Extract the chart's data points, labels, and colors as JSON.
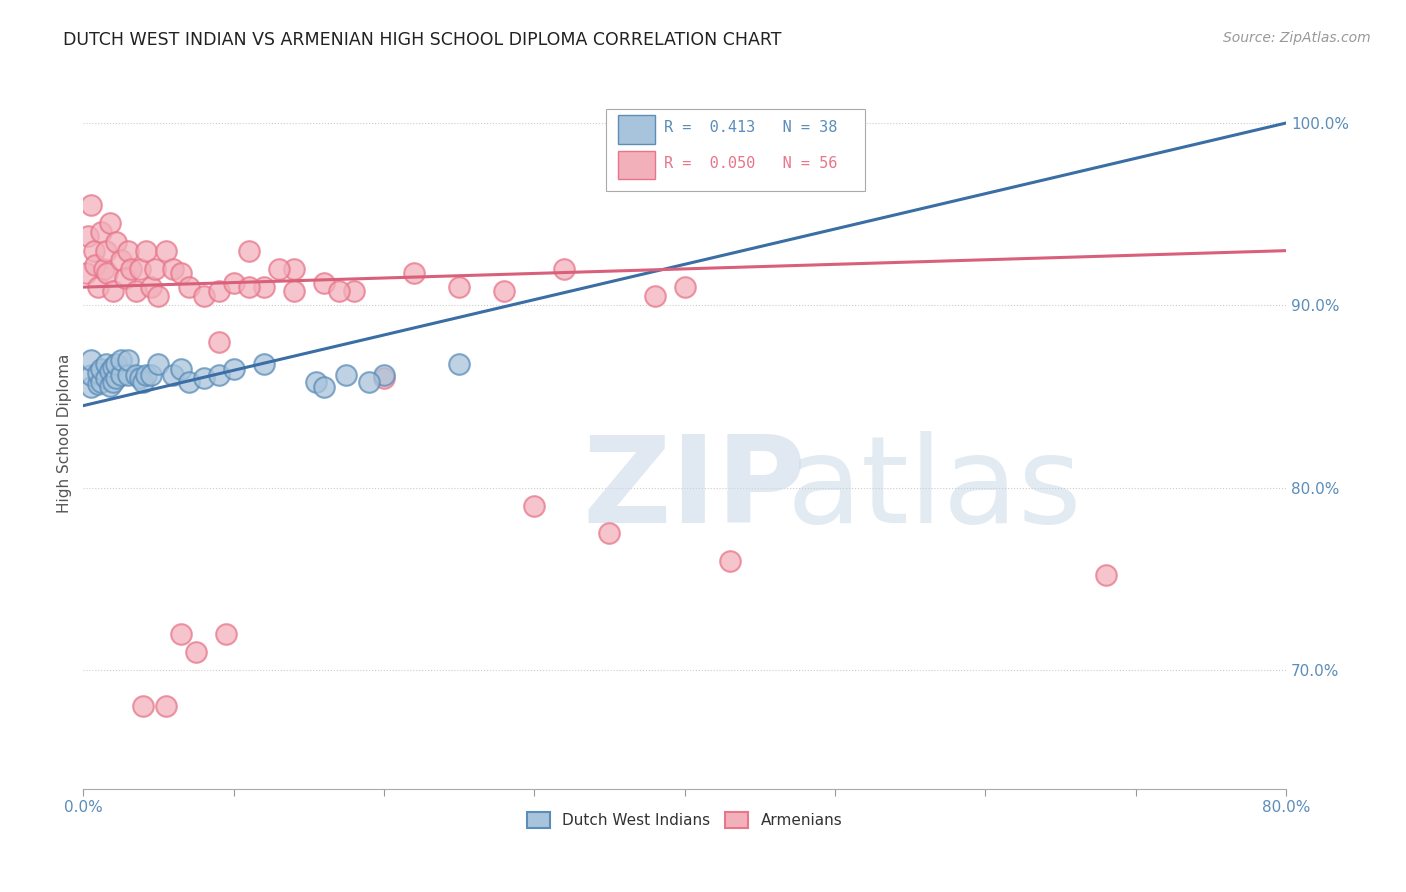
{
  "title": "DUTCH WEST INDIAN VS ARMENIAN HIGH SCHOOL DIPLOMA CORRELATION CHART",
  "source": "Source: ZipAtlas.com",
  "ylabel": "High School Diploma",
  "y_tick_labels": [
    "70.0%",
    "80.0%",
    "90.0%",
    "100.0%"
  ],
  "y_tick_values": [
    0.7,
    0.8,
    0.9,
    1.0
  ],
  "xlim": [
    0.0,
    0.8
  ],
  "ylim": [
    0.635,
    1.025
  ],
  "legend_blue_text": "R =  0.413   N = 38",
  "legend_pink_text": "R =  0.050   N = 56",
  "blue_color": "#5B8DB8",
  "pink_color": "#E8758A",
  "blue_fill": "#A8C4DC",
  "pink_fill": "#F2B0BB",
  "blue_line_color": "#3A6EA5",
  "pink_line_color": "#D9607A",
  "blue_scatter_x": [
    0.005,
    0.005,
    0.005,
    0.01,
    0.01,
    0.012,
    0.012,
    0.015,
    0.015,
    0.018,
    0.018,
    0.02,
    0.02,
    0.022,
    0.022,
    0.025,
    0.025,
    0.03,
    0.03,
    0.035,
    0.038,
    0.04,
    0.042,
    0.045,
    0.05,
    0.06,
    0.065,
    0.07,
    0.08,
    0.09,
    0.1,
    0.12,
    0.155,
    0.175,
    0.2,
    0.25,
    0.16,
    0.19
  ],
  "blue_scatter_y": [
    0.855,
    0.862,
    0.87,
    0.857,
    0.863,
    0.858,
    0.865,
    0.86,
    0.868,
    0.856,
    0.864,
    0.858,
    0.866,
    0.86,
    0.868,
    0.862,
    0.87,
    0.862,
    0.87,
    0.862,
    0.86,
    0.858,
    0.862,
    0.862,
    0.868,
    0.862,
    0.865,
    0.858,
    0.86,
    0.862,
    0.865,
    0.868,
    0.858,
    0.862,
    0.862,
    0.868,
    0.855,
    0.858
  ],
  "pink_scatter_x": [
    0.002,
    0.003,
    0.005,
    0.007,
    0.008,
    0.01,
    0.012,
    0.014,
    0.015,
    0.016,
    0.018,
    0.02,
    0.022,
    0.025,
    0.028,
    0.03,
    0.032,
    0.035,
    0.038,
    0.042,
    0.045,
    0.048,
    0.05,
    0.055,
    0.06,
    0.065,
    0.07,
    0.08,
    0.09,
    0.1,
    0.11,
    0.12,
    0.14,
    0.16,
    0.18,
    0.2,
    0.22,
    0.25,
    0.28,
    0.3,
    0.32,
    0.35,
    0.38,
    0.4,
    0.43,
    0.68,
    0.13,
    0.17,
    0.09,
    0.11,
    0.14,
    0.095,
    0.075,
    0.065,
    0.055,
    0.04
  ],
  "pink_scatter_y": [
    0.918,
    0.938,
    0.955,
    0.93,
    0.922,
    0.91,
    0.94,
    0.92,
    0.93,
    0.918,
    0.945,
    0.908,
    0.935,
    0.925,
    0.915,
    0.93,
    0.92,
    0.908,
    0.92,
    0.93,
    0.91,
    0.92,
    0.905,
    0.93,
    0.92,
    0.918,
    0.91,
    0.905,
    0.908,
    0.912,
    0.93,
    0.91,
    0.92,
    0.912,
    0.908,
    0.86,
    0.918,
    0.91,
    0.908,
    0.79,
    0.92,
    0.775,
    0.905,
    0.91,
    0.76,
    0.752,
    0.92,
    0.908,
    0.88,
    0.91,
    0.908,
    0.72,
    0.71,
    0.72,
    0.68,
    0.68
  ],
  "watermark_zip": "ZIP",
  "watermark_atlas": "atlas",
  "background_color": "#ffffff",
  "grid_color": "#cccccc"
}
